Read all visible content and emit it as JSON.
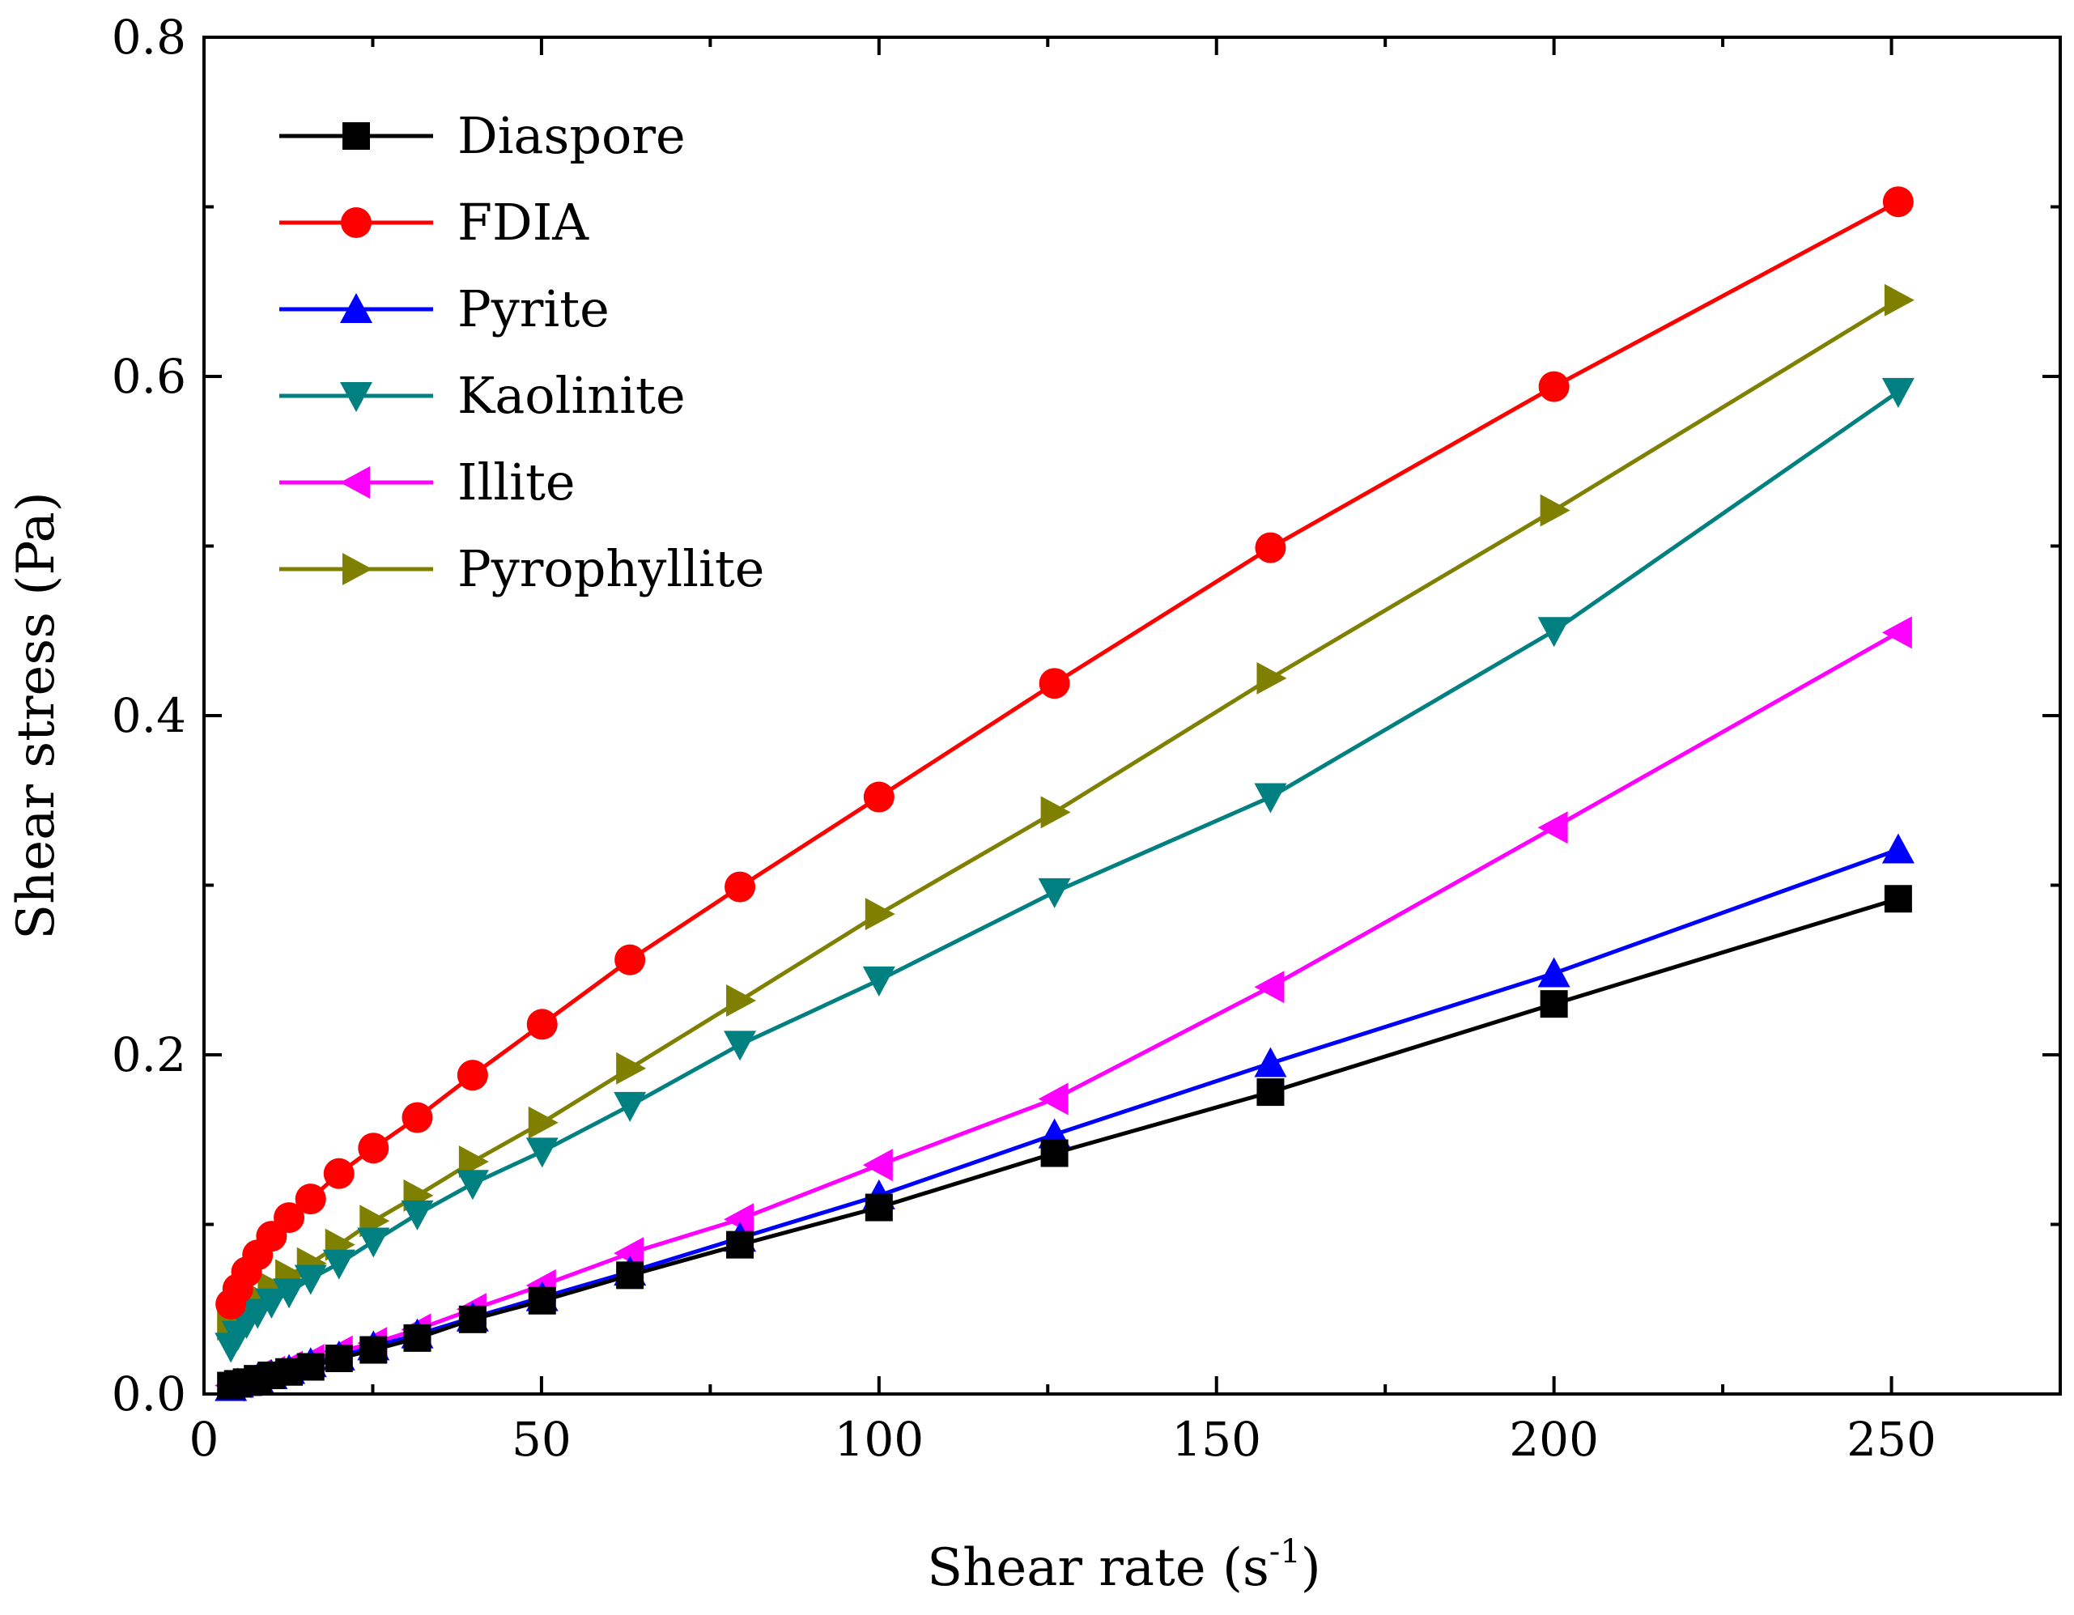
{
  "chart_data": {
    "type": "line",
    "xlabel": "Shear rate (s",
    "xlabel_sup": "-1",
    "xlabel_close": ")",
    "ylabel": "Shear stress (Pa)",
    "xlim": [
      0,
      275
    ],
    "ylim": [
      0,
      0.8
    ],
    "xticks": [
      0,
      50,
      100,
      150,
      200,
      250
    ],
    "xtick_labels": [
      "0",
      "50",
      "100",
      "150",
      "200",
      "250"
    ],
    "yticks": [
      0,
      0.2,
      0.4,
      0.6,
      0.8
    ],
    "ytick_labels": [
      "0.0",
      "0.2",
      "0.4",
      "0.6",
      "0.8"
    ],
    "grid": false,
    "legend_position": "top-left",
    "x": [
      3.98,
      5.01,
      6.31,
      7.94,
      10,
      12.6,
      15.8,
      20,
      25.1,
      31.6,
      39.8,
      50.1,
      63.1,
      79.4,
      100,
      126,
      158,
      200,
      251
    ],
    "series": [
      {
        "name": "Diaspore",
        "color": "#000000",
        "marker": "square",
        "values": [
          0.005,
          0.006,
          0.007,
          0.009,
          0.011,
          0.013,
          0.016,
          0.021,
          0.026,
          0.033,
          0.044,
          0.055,
          0.07,
          0.088,
          0.11,
          0.142,
          0.178,
          0.23,
          0.292
        ]
      },
      {
        "name": "FDIA",
        "color": "#ff0000",
        "marker": "circle",
        "values": [
          0.053,
          0.062,
          0.072,
          0.082,
          0.093,
          0.104,
          0.115,
          0.13,
          0.145,
          0.163,
          0.188,
          0.218,
          0.256,
          0.299,
          0.352,
          0.419,
          0.499,
          0.594,
          0.703
        ]
      },
      {
        "name": "Pyrite",
        "color": "#0000ff",
        "marker": "triangle-up",
        "values": [
          0.004,
          0.006,
          0.007,
          0.009,
          0.011,
          0.014,
          0.018,
          0.022,
          0.028,
          0.035,
          0.045,
          0.057,
          0.072,
          0.092,
          0.117,
          0.153,
          0.195,
          0.248,
          0.321
        ]
      },
      {
        "name": "Kaolinite",
        "color": "#008080",
        "marker": "triangle-down",
        "values": [
          0.028,
          0.035,
          0.042,
          0.048,
          0.054,
          0.06,
          0.068,
          0.077,
          0.09,
          0.106,
          0.124,
          0.143,
          0.17,
          0.206,
          0.244,
          0.296,
          0.352,
          0.45,
          0.591
        ]
      },
      {
        "name": "Illite",
        "color": "#ff00ff",
        "marker": "triangle-left",
        "values": [
          0.005,
          0.007,
          0.009,
          0.011,
          0.013,
          0.016,
          0.02,
          0.025,
          0.03,
          0.038,
          0.05,
          0.064,
          0.083,
          0.103,
          0.135,
          0.174,
          0.24,
          0.334,
          0.449
        ]
      },
      {
        "name": "Pyrophyllite",
        "color": "#808000",
        "marker": "triangle-right",
        "values": [
          0.041,
          0.046,
          0.051,
          0.057,
          0.063,
          0.07,
          0.077,
          0.088,
          0.102,
          0.117,
          0.137,
          0.16,
          0.192,
          0.232,
          0.283,
          0.343,
          0.422,
          0.521,
          0.645
        ]
      }
    ]
  }
}
